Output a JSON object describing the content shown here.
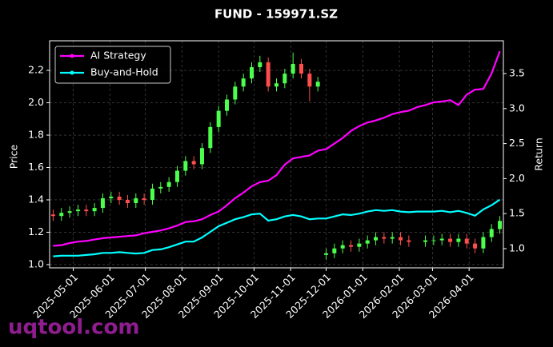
{
  "chart_data": {
    "type": "candlestick",
    "title": "FUND - 159971.SZ",
    "ylabel": "Price",
    "y2label": "Return",
    "watermark": "uqtool.com",
    "x": [
      "2025-04-14",
      "2025-04-21",
      "2025-04-28",
      "2025-05-05",
      "2025-05-12",
      "2025-05-19",
      "2025-05-26",
      "2025-06-02",
      "2025-06-09",
      "2025-06-16",
      "2025-06-23",
      "2025-06-30",
      "2025-07-07",
      "2025-07-14",
      "2025-07-21",
      "2025-07-28",
      "2025-08-04",
      "2025-08-11",
      "2025-08-18",
      "2025-08-25",
      "2025-09-01",
      "2025-09-08",
      "2025-09-15",
      "2025-09-22",
      "2025-09-29",
      "2025-10-06",
      "2025-10-13",
      "2025-10-20",
      "2025-10-27",
      "2025-11-03",
      "2025-11-10",
      "2025-11-17",
      "2025-11-24",
      "2025-12-01",
      "2025-12-08",
      "2025-12-15",
      "2025-12-22",
      "2025-12-29",
      "2026-01-05",
      "2026-01-12",
      "2026-01-19",
      "2026-01-26",
      "2026-02-02",
      "2026-02-09",
      "2026-02-16",
      "2026-02-23",
      "2026-03-02",
      "2026-03-09",
      "2026-03-16",
      "2026-03-23",
      "2026-03-30",
      "2026-04-06",
      "2026-04-13",
      "2026-04-20",
      "2026-04-27"
    ],
    "open": [
      1.31,
      1.3,
      1.32,
      1.33,
      1.34,
      1.33,
      1.35,
      1.41,
      1.42,
      1.4,
      1.38,
      1.41,
      1.4,
      1.47,
      1.48,
      1.51,
      1.58,
      1.64,
      1.62,
      1.72,
      1.85,
      1.95,
      2.02,
      2.1,
      2.15,
      2.22,
      2.25,
      2.1,
      2.12,
      2.18,
      2.24,
      2.18,
      2.1,
      1.06,
      1.07,
      1.1,
      1.12,
      1.11,
      1.13,
      1.15,
      1.17,
      1.16,
      1.17,
      1.15,
      null,
      1.14,
      1.15,
      1.15,
      1.16,
      1.14,
      1.16,
      1.13,
      1.1,
      1.17,
      1.22
    ],
    "high": [
      1.34,
      1.35,
      1.36,
      1.37,
      1.37,
      1.38,
      1.44,
      1.45,
      1.45,
      1.43,
      1.44,
      1.44,
      1.5,
      1.51,
      1.54,
      1.61,
      1.67,
      1.67,
      1.75,
      1.88,
      1.98,
      2.05,
      2.13,
      2.18,
      2.25,
      2.29,
      2.28,
      2.15,
      2.21,
      2.31,
      2.27,
      2.21,
      2.16,
      1.1,
      1.13,
      1.15,
      1.15,
      1.16,
      1.18,
      1.2,
      1.2,
      1.2,
      1.2,
      1.18,
      null,
      1.18,
      1.18,
      1.19,
      1.19,
      1.19,
      1.19,
      1.16,
      1.2,
      1.25,
      1.3
    ],
    "low": [
      1.27,
      1.27,
      1.29,
      1.3,
      1.3,
      1.3,
      1.32,
      1.38,
      1.37,
      1.35,
      1.35,
      1.37,
      1.37,
      1.44,
      1.45,
      1.48,
      1.55,
      1.59,
      1.59,
      1.69,
      1.82,
      1.92,
      1.99,
      2.07,
      2.12,
      2.19,
      2.07,
      2.07,
      2.09,
      2.15,
      2.15,
      2.01,
      2.07,
      1.03,
      1.04,
      1.07,
      1.08,
      1.08,
      1.1,
      1.12,
      1.13,
      1.13,
      1.12,
      1.11,
      null,
      1.11,
      1.12,
      1.12,
      1.11,
      1.11,
      1.1,
      1.07,
      1.07,
      1.14,
      1.19
    ],
    "close": [
      1.3,
      1.32,
      1.33,
      1.34,
      1.33,
      1.35,
      1.41,
      1.42,
      1.4,
      1.38,
      1.41,
      1.4,
      1.47,
      1.48,
      1.51,
      1.58,
      1.64,
      1.62,
      1.72,
      1.85,
      1.95,
      2.02,
      2.1,
      2.15,
      2.22,
      2.25,
      2.1,
      2.12,
      2.18,
      2.24,
      2.18,
      2.1,
      2.13,
      1.07,
      1.1,
      1.12,
      1.11,
      1.13,
      1.15,
      1.17,
      1.16,
      1.17,
      1.15,
      1.14,
      null,
      1.15,
      1.15,
      1.16,
      1.14,
      1.16,
      1.13,
      1.1,
      1.17,
      1.22,
      1.27
    ],
    "up_color": "#4cff4c",
    "down_color": "#ff4c4c",
    "series": [
      {
        "name": "AI Strategy",
        "color": "#ff00ff",
        "axis": "y2",
        "values": [
          1.04,
          1.05,
          1.08,
          1.1,
          1.11,
          1.13,
          1.15,
          1.16,
          1.17,
          1.18,
          1.19,
          1.22,
          1.24,
          1.26,
          1.29,
          1.33,
          1.38,
          1.39,
          1.42,
          1.48,
          1.53,
          1.62,
          1.72,
          1.8,
          1.89,
          1.95,
          1.97,
          2.05,
          2.2,
          2.29,
          2.31,
          2.33,
          2.4,
          2.42,
          2.5,
          2.58,
          2.68,
          2.75,
          2.8,
          2.83,
          2.87,
          2.92,
          2.95,
          2.97,
          3.02,
          3.05,
          3.09,
          3.1,
          3.12,
          3.05,
          3.2,
          3.27,
          3.28,
          3.5,
          3.82
        ]
      },
      {
        "name": "Buy-and-Hold",
        "color": "#00ffff",
        "axis": "y2",
        "values": [
          0.89,
          0.9,
          0.9,
          0.9,
          0.91,
          0.92,
          0.94,
          0.94,
          0.95,
          0.94,
          0.93,
          0.94,
          0.98,
          0.99,
          1.02,
          1.06,
          1.1,
          1.1,
          1.16,
          1.24,
          1.32,
          1.37,
          1.42,
          1.45,
          1.49,
          1.5,
          1.4,
          1.42,
          1.46,
          1.48,
          1.46,
          1.42,
          1.43,
          1.43,
          1.46,
          1.49,
          1.48,
          1.5,
          1.53,
          1.55,
          1.54,
          1.55,
          1.53,
          1.52,
          1.53,
          1.53,
          1.53,
          1.54,
          1.52,
          1.54,
          1.51,
          1.47,
          1.56,
          1.62,
          1.7
        ]
      }
    ],
    "xlim": [
      "2025-04-11",
      "2026-04-30"
    ],
    "xticks": [
      "2025-05-01",
      "2025-06-01",
      "2025-07-01",
      "2025-08-01",
      "2025-09-01",
      "2025-10-01",
      "2025-11-01",
      "2025-12-01",
      "2026-01-01",
      "2026-02-01",
      "2026-03-01",
      "2026-04-01"
    ],
    "ylim": [
      0.98,
      2.383
    ],
    "yticks": [
      {
        "value": 1,
        "label": "1.0"
      },
      1.2,
      1.4,
      1.6,
      1.8,
      {
        "value": 2,
        "label": "2.0"
      },
      2.2
    ],
    "y2lim": [
      0.726,
      3.968
    ],
    "y2ticks": [
      {
        "value": 1,
        "label": "1.0"
      },
      1.5,
      {
        "value": 2,
        "label": "2.0"
      },
      2.5,
      {
        "value": 3,
        "label": "3.0"
      },
      3.5
    ],
    "grid": true,
    "legend": "upper left"
  }
}
